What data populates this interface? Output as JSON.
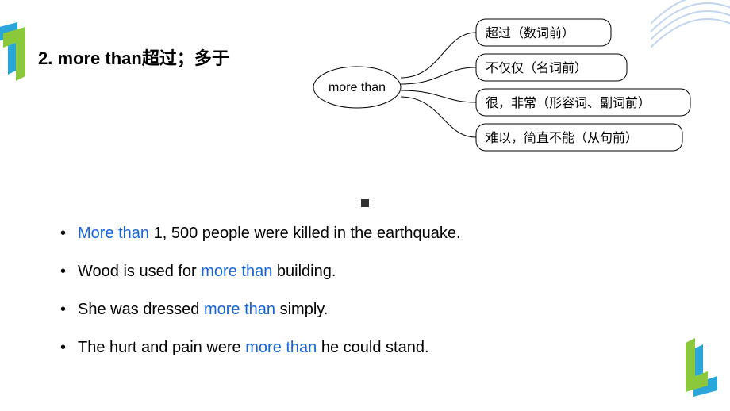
{
  "heading": {
    "number": "2. ",
    "term": "more than",
    "zh": "超过；多于"
  },
  "diagram": {
    "center": "more than",
    "branches": [
      "超过（数词前）",
      "不仅仅（名词前）",
      "很，非常（形容词、副词前）",
      "难以，简直不能（从句前）"
    ],
    "style": {
      "node_stroke": "#000000",
      "node_fill": "#ffffff",
      "text_color": "#000000",
      "font_size_center": 16,
      "font_size_branch": 16,
      "rect_radius": 12,
      "line_width": 1
    }
  },
  "examples": [
    {
      "pre": "",
      "hl": "More than",
      "post": " 1, 500 people were killed in the earthquake."
    },
    {
      "pre": "Wood is used for ",
      "hl": "more than",
      "post": " building."
    },
    {
      "pre": "She was dressed ",
      "hl": "more than",
      "post": " simply."
    },
    {
      "pre": "The hurt and pain were ",
      "hl": "more than",
      "post": " he could stand."
    }
  ],
  "deco": {
    "blue": "#2aa7d8",
    "green": "#8cc83c",
    "stripe": "#7aa3e0"
  }
}
